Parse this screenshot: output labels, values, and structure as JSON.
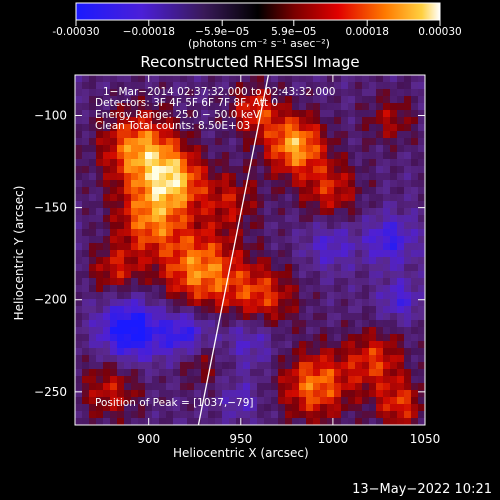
{
  "colorbar": {
    "ticks": [
      "-0.00030",
      "−0.00018",
      "−5.9e−05",
      "5.9e−05",
      "0.00018",
      "0.00030"
    ],
    "tick_values": [
      -0.0003,
      -0.00018,
      -5.9e-05,
      5.9e-05,
      0.00018,
      0.0003
    ],
    "range": [
      -0.0003,
      0.0003
    ],
    "units_label": "(photons cm⁻² s⁻¹ asec⁻²)"
  },
  "chart_data": {
    "type": "heatmap",
    "title": "Reconstructed RHESSI Image",
    "xlabel": "Heliocentric X (arcsec)",
    "ylabel": "Heliocentric Y (arcsec)",
    "xlim": [
      860,
      1050
    ],
    "ylim": [
      -268,
      -78
    ],
    "xticks": [
      900,
      950,
      1000,
      1050
    ],
    "yticks": [
      -100,
      -150,
      -200,
      -250
    ],
    "xtick_labels": [
      "900",
      "950",
      "1000",
      "1050"
    ],
    "ytick_labels": [
      "−100",
      "−150",
      "−200",
      "−250"
    ],
    "limb_line": [
      [
        927,
        -268
      ],
      [
        965,
        -78
      ]
    ],
    "peak_position": [
      1037,
      -79
    ],
    "annotations": [
      "1−Mar−2014 02:37:32.000 to 02:43:32.000",
      "Detectors: 3F 4F 5F 6F 7F 8F, Att 0",
      "Energy Range: 25.0 − 50.0 keV",
      "Clean     Total counts: 8.50E+03"
    ],
    "peak_text": "Position of Peak = [1037,−79]"
  },
  "footer": {
    "timestamp": "13−May−2022 10:21"
  }
}
